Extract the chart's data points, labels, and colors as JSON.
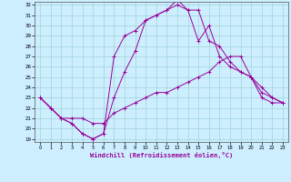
{
  "xlabel": "Windchill (Refroidissement éolien,°C)",
  "bg_color": "#cceeff",
  "line_color": "#990099",
  "xlim": [
    -0.5,
    23.5
  ],
  "ylim": [
    18.7,
    32.3
  ],
  "yticks": [
    19,
    20,
    21,
    22,
    23,
    24,
    25,
    26,
    27,
    28,
    29,
    30,
    31,
    32
  ],
  "xticks": [
    0,
    1,
    2,
    3,
    4,
    5,
    6,
    7,
    8,
    9,
    10,
    11,
    12,
    13,
    14,
    15,
    16,
    17,
    18,
    19,
    20,
    21,
    22,
    23
  ],
  "line1_x": [
    0,
    1,
    2,
    3,
    4,
    5,
    6,
    7,
    8,
    9,
    10,
    11,
    12,
    13,
    14,
    15,
    16,
    17,
    18,
    19,
    20,
    21,
    22,
    23
  ],
  "line1_y": [
    23.0,
    22.0,
    21.0,
    20.5,
    19.5,
    19.0,
    19.5,
    27.0,
    29.0,
    29.5,
    30.5,
    31.0,
    31.5,
    32.0,
    31.5,
    28.5,
    30.0,
    27.0,
    26.0,
    25.5,
    25.0,
    23.0,
    22.5,
    22.5
  ],
  "line2_x": [
    0,
    1,
    2,
    3,
    4,
    5,
    6,
    7,
    8,
    9,
    10,
    11,
    12,
    13,
    14,
    15,
    16,
    17,
    18,
    19,
    20,
    21,
    22,
    23
  ],
  "line2_y": [
    23.0,
    22.0,
    21.0,
    20.5,
    19.5,
    19.0,
    19.5,
    23.0,
    25.5,
    27.5,
    30.5,
    31.0,
    31.5,
    32.5,
    31.5,
    31.5,
    28.5,
    28.0,
    26.5,
    25.5,
    25.0,
    24.0,
    23.0,
    22.5
  ],
  "line3_x": [
    0,
    1,
    2,
    3,
    4,
    5,
    6,
    7,
    8,
    9,
    10,
    11,
    12,
    13,
    14,
    15,
    16,
    17,
    18,
    19,
    20,
    21,
    22,
    23
  ],
  "line3_y": [
    23.0,
    22.0,
    21.0,
    21.0,
    21.0,
    20.5,
    20.5,
    21.5,
    22.0,
    22.5,
    23.0,
    23.5,
    23.5,
    24.0,
    24.5,
    25.0,
    25.5,
    26.5,
    27.0,
    27.0,
    25.0,
    23.5,
    23.0,
    22.5
  ]
}
